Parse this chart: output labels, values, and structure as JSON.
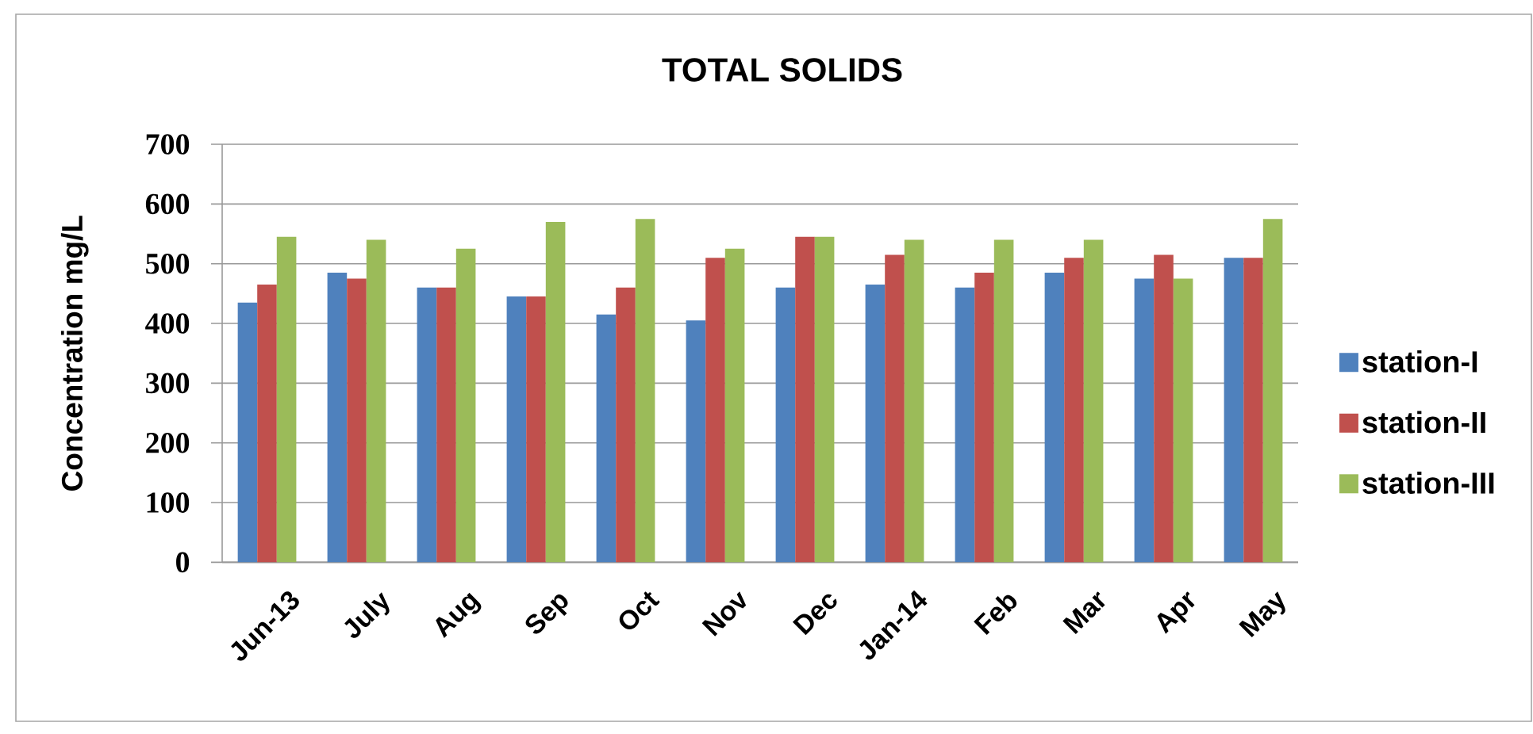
{
  "chart_data": {
    "type": "bar",
    "title": "TOTAL SOLIDS",
    "ylabel": "Concentration mg/L",
    "categories": [
      "Jun-13",
      "July",
      "Aug",
      "Sep",
      "Oct",
      "Nov",
      "Dec",
      "Jan-14",
      "Feb",
      "Mar",
      "Apr",
      "May"
    ],
    "series": [
      {
        "name": "station-I",
        "color": "#4f81bd",
        "values": [
          435,
          485,
          460,
          445,
          415,
          405,
          460,
          465,
          460,
          485,
          475,
          510
        ]
      },
      {
        "name": "station-II",
        "color": "#c0504d",
        "values": [
          465,
          475,
          460,
          445,
          460,
          510,
          545,
          515,
          485,
          510,
          515,
          510
        ]
      },
      {
        "name": "station-III",
        "color": "#9bbb59",
        "values": [
          545,
          540,
          525,
          570,
          575,
          525,
          545,
          540,
          540,
          540,
          475,
          575
        ]
      }
    ],
    "ylim": [
      0,
      700
    ],
    "yticks": [
      0,
      100,
      200,
      300,
      400,
      500,
      600,
      700
    ],
    "grid": "y",
    "legend": "right"
  }
}
